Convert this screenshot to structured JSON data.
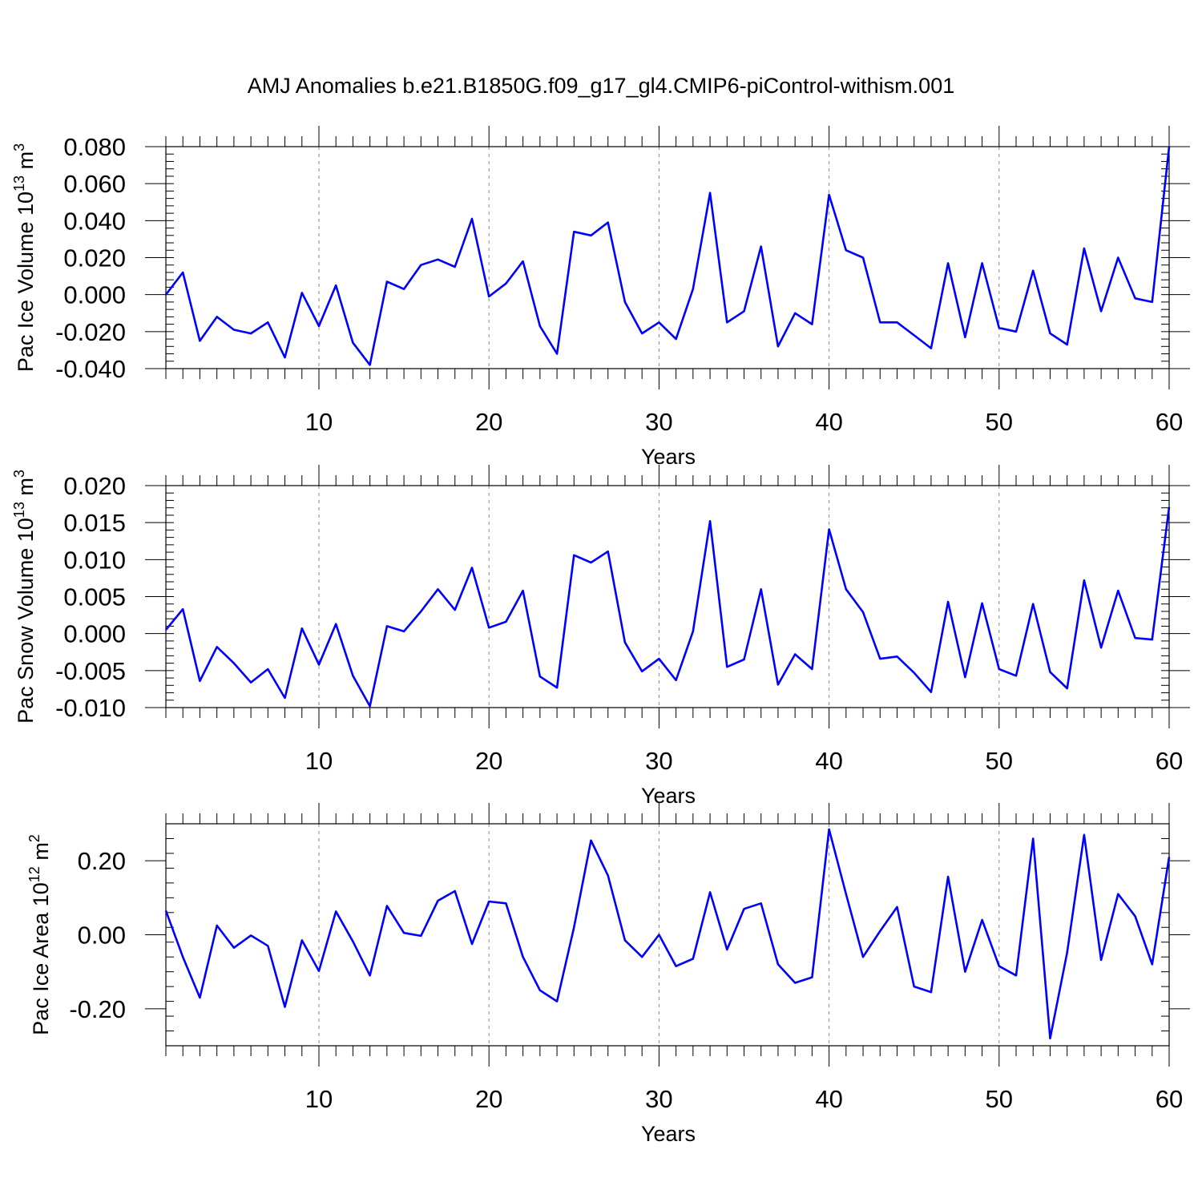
{
  "title": "AMJ Anomalies b.e21.B1850G.f09_g17_gl4.CMIP6-piControl-withism.001",
  "line_color": "#0000ff",
  "chart_data": [
    {
      "type": "line",
      "xlabel": "Years",
      "ylabel_text": "Pac Ice Volume 10",
      "ylabel_exp": "13",
      "ylabel_unit": "m",
      "ylabel_unit_exp": "3",
      "xlim": [
        1,
        60
      ],
      "ylim": [
        -0.04,
        0.08
      ],
      "x_ticks": [
        10,
        20,
        30,
        40,
        50,
        60
      ],
      "y_ticks": [
        -0.04,
        -0.02,
        0.0,
        0.02,
        0.04,
        0.06,
        0.08
      ],
      "y_tick_labels": [
        "-0.040",
        "-0.020",
        "0.000",
        "0.020",
        "0.040",
        "0.060",
        "0.080"
      ],
      "x": [
        1,
        2,
        3,
        4,
        5,
        6,
        7,
        8,
        9,
        10,
        11,
        12,
        13,
        14,
        15,
        16,
        17,
        18,
        19,
        20,
        21,
        22,
        23,
        24,
        25,
        26,
        27,
        28,
        29,
        30,
        31,
        32,
        33,
        34,
        35,
        36,
        37,
        38,
        39,
        40,
        41,
        42,
        43,
        44,
        45,
        46,
        47,
        48,
        49,
        50,
        51,
        52,
        53,
        54,
        55,
        56,
        57,
        58,
        59,
        60
      ],
      "values": [
        0.0,
        0.012,
        -0.025,
        -0.012,
        -0.019,
        -0.021,
        -0.015,
        -0.034,
        0.001,
        -0.017,
        0.005,
        -0.026,
        -0.038,
        0.007,
        0.003,
        0.016,
        0.019,
        0.015,
        0.041,
        -0.001,
        0.006,
        0.018,
        -0.017,
        -0.032,
        0.034,
        0.032,
        0.039,
        -0.004,
        -0.021,
        -0.015,
        -0.024,
        0.003,
        0.055,
        -0.015,
        -0.009,
        0.026,
        -0.028,
        -0.01,
        -0.016,
        0.054,
        0.024,
        0.02,
        -0.015,
        -0.015,
        -0.022,
        -0.029,
        0.017,
        -0.023,
        0.017,
        -0.018,
        -0.02,
        0.013,
        -0.021,
        -0.027,
        0.025,
        -0.009,
        0.02,
        -0.002,
        -0.004,
        0.08
      ]
    },
    {
      "type": "line",
      "xlabel": "Years",
      "ylabel_text": "Pac Snow Volume 10",
      "ylabel_exp": "13",
      "ylabel_unit": "m",
      "ylabel_unit_exp": "3",
      "xlim": [
        1,
        60
      ],
      "ylim": [
        -0.01,
        0.02
      ],
      "x_ticks": [
        10,
        20,
        30,
        40,
        50,
        60
      ],
      "y_ticks": [
        -0.01,
        -0.005,
        0.0,
        0.005,
        0.01,
        0.015,
        0.02
      ],
      "y_tick_labels": [
        "-0.010",
        "-0.005",
        "0.000",
        "0.005",
        "0.010",
        "0.015",
        "0.020"
      ],
      "x": [
        1,
        2,
        3,
        4,
        5,
        6,
        7,
        8,
        9,
        10,
        11,
        12,
        13,
        14,
        15,
        16,
        17,
        18,
        19,
        20,
        21,
        22,
        23,
        24,
        25,
        26,
        27,
        28,
        29,
        30,
        31,
        32,
        33,
        34,
        35,
        36,
        37,
        38,
        39,
        40,
        41,
        42,
        43,
        44,
        45,
        46,
        47,
        48,
        49,
        50,
        51,
        52,
        53,
        54,
        55,
        56,
        57,
        58,
        59,
        60
      ],
      "values": [
        0.0005,
        0.0033,
        -0.0064,
        -0.0018,
        -0.004,
        -0.0066,
        -0.0048,
        -0.0087,
        0.0007,
        -0.0042,
        0.0013,
        -0.0057,
        -0.0098,
        0.001,
        0.0003,
        0.003,
        0.006,
        0.0032,
        0.0089,
        0.0008,
        0.0016,
        0.0058,
        -0.0058,
        -0.0073,
        0.0106,
        0.0096,
        0.0111,
        -0.0012,
        -0.0051,
        -0.0034,
        -0.0063,
        0.0003,
        0.0152,
        -0.0045,
        -0.0035,
        0.006,
        -0.0069,
        -0.0028,
        -0.0048,
        0.0141,
        0.006,
        0.0029,
        -0.0034,
        -0.0031,
        -0.0053,
        -0.0079,
        0.0043,
        -0.0059,
        0.0041,
        -0.0048,
        -0.0057,
        0.004,
        -0.0052,
        -0.0074,
        0.0072,
        -0.0019,
        0.0058,
        -0.0006,
        -0.0008,
        0.0171
      ]
    },
    {
      "type": "line",
      "xlabel": "Years",
      "ylabel_text": "Pac Ice Area 10",
      "ylabel_exp": "12",
      "ylabel_unit": "m",
      "ylabel_unit_exp": "2",
      "xlim": [
        1,
        60
      ],
      "ylim": [
        -0.3,
        0.3
      ],
      "x_ticks": [
        10,
        20,
        30,
        40,
        50,
        60
      ],
      "y_ticks": [
        -0.2,
        0.0,
        0.2
      ],
      "y_tick_labels": [
        "-0.20",
        "0.00",
        "0.20"
      ],
      "x": [
        1,
        2,
        3,
        4,
        5,
        6,
        7,
        8,
        9,
        10,
        11,
        12,
        13,
        14,
        15,
        16,
        17,
        18,
        19,
        20,
        21,
        22,
        23,
        24,
        25,
        26,
        27,
        28,
        29,
        30,
        31,
        32,
        33,
        34,
        35,
        36,
        37,
        38,
        39,
        40,
        41,
        42,
        43,
        44,
        45,
        46,
        47,
        48,
        49,
        50,
        51,
        52,
        53,
        54,
        55,
        56,
        57,
        58,
        59,
        60
      ],
      "values": [
        0.065,
        -0.06,
        -0.17,
        0.025,
        -0.035,
        -0.002,
        -0.03,
        -0.195,
        -0.015,
        -0.098,
        0.063,
        -0.018,
        -0.11,
        0.078,
        0.005,
        -0.003,
        0.092,
        0.118,
        -0.025,
        0.09,
        0.085,
        -0.06,
        -0.15,
        -0.18,
        0.02,
        0.255,
        0.16,
        -0.015,
        -0.06,
        0.0,
        -0.085,
        -0.065,
        0.115,
        -0.04,
        0.07,
        0.085,
        -0.08,
        -0.13,
        -0.115,
        0.285,
        0.11,
        -0.06,
        0.01,
        0.075,
        -0.14,
        -0.155,
        0.157,
        -0.1,
        0.04,
        -0.085,
        -0.11,
        0.26,
        -0.28,
        -0.048,
        0.27,
        -0.068,
        0.11,
        0.05,
        -0.08,
        0.21
      ]
    }
  ]
}
